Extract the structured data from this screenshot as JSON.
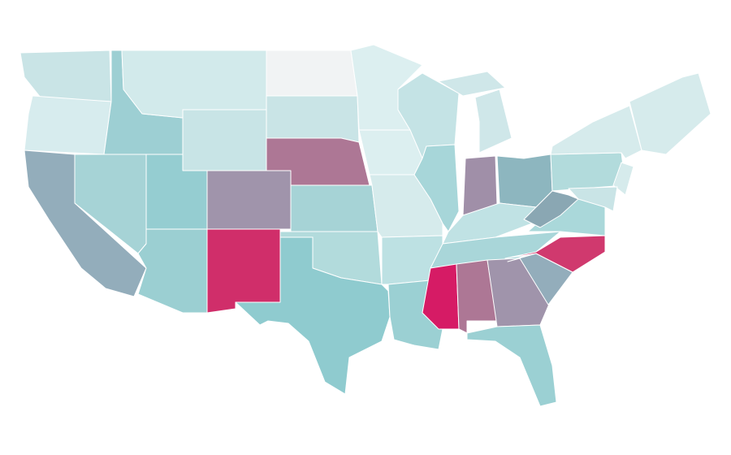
{
  "map": {
    "background": "#ffffff",
    "border_color": "#ffffff",
    "region_colors": [
      "#c9e4e6",
      "#d7ecee",
      "#93adbb",
      "#a6d3d6",
      "#9dcfd3",
      "#d2eaeb",
      "#c8e4e6",
      "#95cdd1",
      "#a094ab",
      "#9bcfd2",
      "#d02e6a",
      "#f1f3f4",
      "#c9e4e6",
      "#ad7795",
      "#a6d3d6",
      "#b2dbdc",
      "#8fcbcf",
      "#dceff0",
      "#dceff0",
      "#d6ebec",
      "#bde1e3",
      "#9bd0d3",
      "#c4e3e5",
      "#a7d6d9",
      "#cfe7e9",
      "#a08fa8",
      "#8db6bf",
      "#c0e2e4",
      "#a9d6d9",
      "#d61b65",
      "#ad7795",
      "#a094ab",
      "#9bd0d3",
      "#93adbb",
      "#d0396e",
      "#aad8da",
      "#8aa7b3",
      "#b2dbdc",
      "#d6ebec",
      "#d6ebec",
      "#d6ebec",
      "#c9e4e6"
    ]
  }
}
